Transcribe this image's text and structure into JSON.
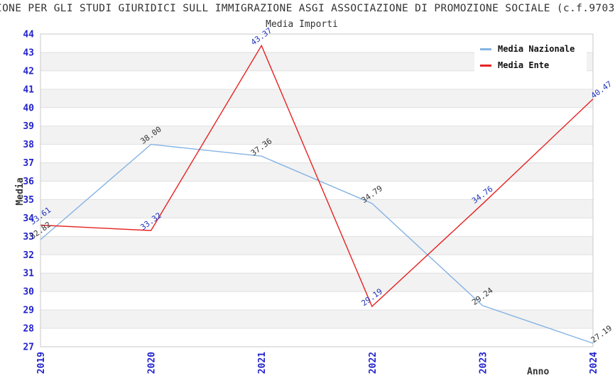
{
  "header": {
    "text": "IONE PER GLI STUDI GIURIDICI SULL IMMIGRAZIONE ASGI ASSOCIAZIONE DI PROMOZIONE SOCIALE (c.f.9703"
  },
  "chart_data": {
    "type": "line",
    "title": "Media Importi",
    "xlabel": "Anno",
    "ylabel": "Media",
    "x": [
      2019,
      2020,
      2021,
      2022,
      2023,
      2024
    ],
    "series": [
      {
        "name": "Media Nazionale",
        "color": "#85B3E3",
        "label_color": "#333333",
        "values": [
          32.82,
          38.0,
          37.36,
          34.79,
          29.24,
          27.19
        ]
      },
      {
        "name": "Media Ente",
        "color": "#E62222",
        "label_color": "#2233BB",
        "values": [
          33.61,
          33.32,
          43.37,
          29.19,
          34.76,
          40.47
        ]
      }
    ],
    "ylim": [
      27,
      44
    ],
    "yticks": [
      27,
      28,
      29,
      30,
      31,
      32,
      33,
      34,
      35,
      36,
      37,
      38,
      39,
      40,
      41,
      42,
      43,
      44
    ],
    "xticks": [
      "2019",
      "2020",
      "2021",
      "2022",
      "2023",
      "2024"
    ],
    "legend_position": "top-right",
    "grid": "horizontal alternating bands",
    "value_label_decimals": 2
  },
  "colors": {
    "axis_tick": "#2222CC",
    "band": "#F2F2F2",
    "gridline": "#E0E0E0",
    "plot_border": "#C9C9C9",
    "background": "#FFFFFF"
  }
}
